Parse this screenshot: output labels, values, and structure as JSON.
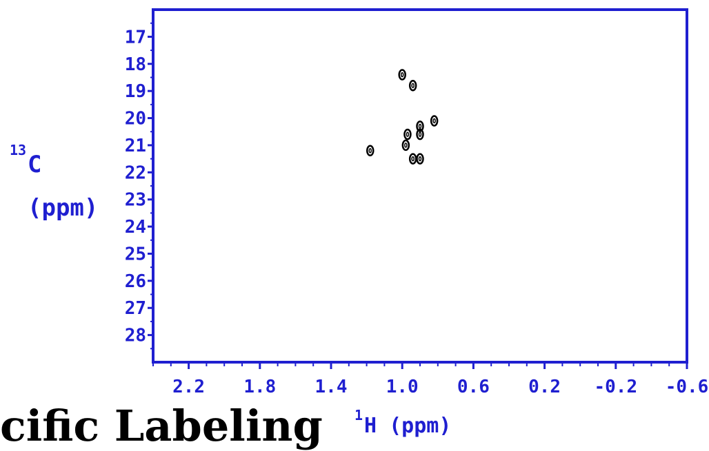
{
  "colors": {
    "axis": "#1f1fd0",
    "contour": "#000000",
    "background": "#ffffff"
  },
  "bottom_text": "cific Labeling",
  "chart_data": {
    "type": "heatmap",
    "plot_kind": "2D NMR contour (HSQC-like)",
    "xlabel_sup": "1",
    "xlabel_main": "H (ppm)",
    "ylabel_sup": "13",
    "ylabel_line1": "C",
    "ylabel_line2": "(ppm)",
    "xlim": [
      2.4,
      -0.6
    ],
    "ylim": [
      16,
      29
    ],
    "x_ticks": [
      "2.2",
      "1.8",
      "1.4",
      "1.0",
      "0.6",
      "0.2",
      "-0.2",
      "-0.6"
    ],
    "x_tick_values": [
      2.2,
      1.8,
      1.4,
      1.0,
      0.6,
      0.2,
      -0.2,
      -0.6
    ],
    "y_ticks": [
      "17",
      "18",
      "19",
      "20",
      "21",
      "22",
      "23",
      "24",
      "25",
      "26",
      "27",
      "28"
    ],
    "y_tick_values": [
      17,
      18,
      19,
      20,
      21,
      22,
      23,
      24,
      25,
      26,
      27,
      28
    ],
    "peaks": [
      {
        "x": 1.0,
        "y": 18.4
      },
      {
        "x": 0.94,
        "y": 18.8
      },
      {
        "x": 0.82,
        "y": 20.1
      },
      {
        "x": 0.9,
        "y": 20.3
      },
      {
        "x": 0.9,
        "y": 20.6
      },
      {
        "x": 0.97,
        "y": 20.6
      },
      {
        "x": 0.98,
        "y": 21.0
      },
      {
        "x": 1.18,
        "y": 21.2
      },
      {
        "x": 0.94,
        "y": 21.5
      },
      {
        "x": 0.9,
        "y": 21.5
      }
    ]
  }
}
